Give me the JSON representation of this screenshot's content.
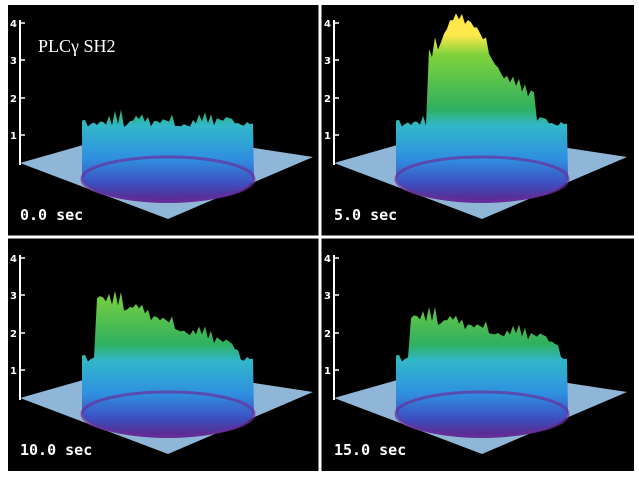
{
  "title": "PLCγ SH2",
  "panels": [
    {
      "time": "0.0 sec",
      "ticks": [
        "1",
        "2",
        "3",
        "4"
      ]
    },
    {
      "time": "5.0 sec",
      "ticks": [
        "1",
        "2",
        "3",
        "4"
      ]
    },
    {
      "time": "10.0 sec",
      "ticks": [
        "1",
        "2",
        "3",
        "4"
      ]
    },
    {
      "time": "15.0 sec",
      "ticks": [
        "1",
        "2",
        "3",
        "4"
      ]
    }
  ]
}
